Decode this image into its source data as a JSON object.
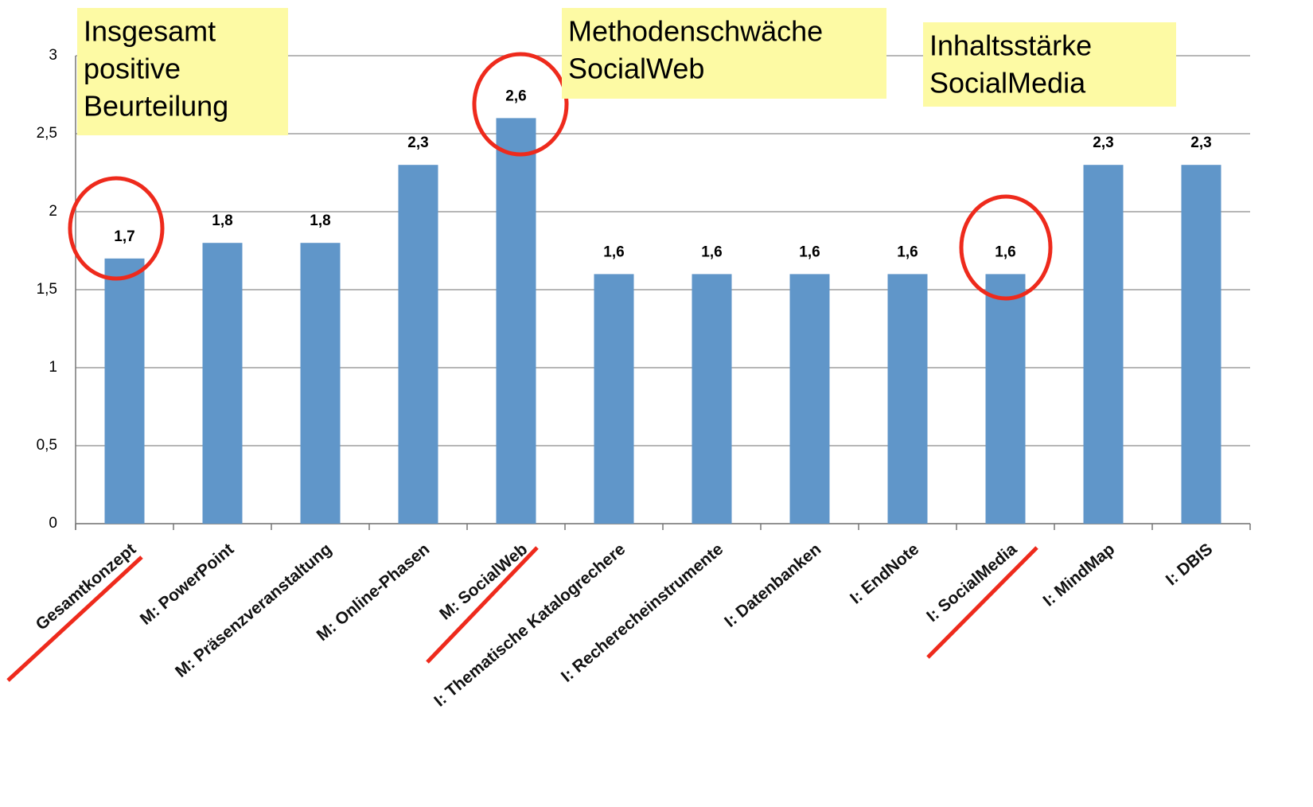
{
  "chart_data": {
    "type": "bar",
    "categories": [
      "Gesamtkonzept",
      "M: PowerPoint",
      "M: Präsenzveranstaltung",
      "M: Online-Phasen",
      "M: SocialWeb",
      "I: Thematische Katalogrechere",
      "I: Recherecheinstrumente",
      "I: Datenbanken",
      "I: EndNote",
      "I: SocialMedia",
      "I: MindMap",
      "I: DBIS"
    ],
    "values": [
      1.7,
      1.8,
      1.8,
      2.3,
      2.6,
      1.6,
      1.6,
      1.6,
      1.6,
      1.6,
      2.3,
      2.3
    ],
    "value_labels": [
      "1,7",
      "1,8",
      "1,8",
      "2,3",
      "2,6",
      "1,6",
      "1,6",
      "1,6",
      "1,6",
      "1,6",
      "2,3",
      "2,3"
    ],
    "color": "#6096c9",
    "ylim": [
      0,
      3
    ],
    "yticks": [
      0,
      {
        "value": 0.5,
        "label": "0,5"
      },
      1,
      {
        "value": 1.5,
        "label": "1,5"
      },
      2,
      {
        "value": 2.5,
        "label": "2,5"
      },
      3
    ],
    "grid": true,
    "annotations": [
      {
        "lines": [
          "Insgesamt",
          "positive",
          "Beurteilung"
        ]
      },
      {
        "lines": [
          "Methodenschwäche",
          "SocialWeb"
        ]
      },
      {
        "lines": [
          "Inhaltsstärke",
          "SocialMedia"
        ]
      }
    ]
  }
}
